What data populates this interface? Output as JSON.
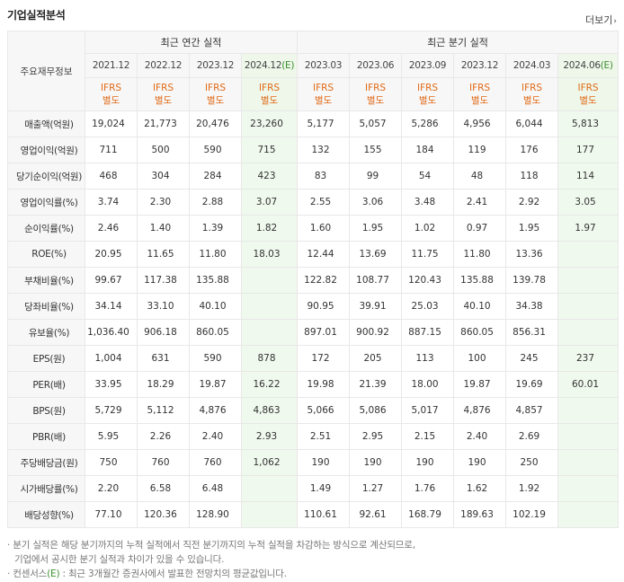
{
  "header": {
    "title": "기업실적분석",
    "more_label": "더보기"
  },
  "table": {
    "corner_label": "주요재무정보",
    "group_annual": "최근 연간 실적",
    "group_quarter": "최근 분기 실적",
    "periods": [
      "2021.12",
      "2022.12",
      "2023.12",
      "2024.12",
      "2023.03",
      "2023.06",
      "2023.09",
      "2023.12",
      "2024.03",
      "2024.06"
    ],
    "estimate_suffix": "(E)",
    "ifrs_line1": "IFRS",
    "ifrs_line2": "별도",
    "rows": [
      {
        "label": "매출액(억원)",
        "values": [
          "19,024",
          "21,773",
          "20,476",
          "23,260",
          "5,177",
          "5,057",
          "5,286",
          "4,956",
          "6,044",
          "5,813"
        ]
      },
      {
        "label": "영업이익(억원)",
        "values": [
          "711",
          "500",
          "590",
          "715",
          "132",
          "155",
          "184",
          "119",
          "176",
          "177"
        ]
      },
      {
        "label": "당기순이익(억원)",
        "values": [
          "468",
          "304",
          "284",
          "423",
          "83",
          "99",
          "54",
          "48",
          "118",
          "114"
        ]
      },
      {
        "label": "영업이익률(%)",
        "values": [
          "3.74",
          "2.30",
          "2.88",
          "3.07",
          "2.55",
          "3.06",
          "3.48",
          "2.41",
          "2.92",
          "3.05"
        ]
      },
      {
        "label": "순이익률(%)",
        "values": [
          "2.46",
          "1.40",
          "1.39",
          "1.82",
          "1.60",
          "1.95",
          "1.02",
          "0.97",
          "1.95",
          "1.97"
        ]
      },
      {
        "label": "ROE(%)",
        "values": [
          "20.95",
          "11.65",
          "11.80",
          "18.03",
          "12.44",
          "13.69",
          "11.75",
          "11.80",
          "13.36",
          ""
        ]
      },
      {
        "label": "부채비율(%)",
        "values": [
          "99.67",
          "117.38",
          "135.88",
          "",
          "122.82",
          "108.77",
          "120.43",
          "135.88",
          "139.78",
          ""
        ]
      },
      {
        "label": "당좌비율(%)",
        "values": [
          "34.14",
          "33.10",
          "40.10",
          "",
          "90.95",
          "39.91",
          "25.03",
          "40.10",
          "34.38",
          ""
        ]
      },
      {
        "label": "유보율(%)",
        "values": [
          "1,036.40",
          "906.18",
          "860.05",
          "",
          "897.01",
          "900.92",
          "887.15",
          "860.05",
          "856.31",
          ""
        ]
      },
      {
        "label": "EPS(원)",
        "values": [
          "1,004",
          "631",
          "590",
          "878",
          "172",
          "205",
          "113",
          "100",
          "245",
          "237"
        ]
      },
      {
        "label": "PER(배)",
        "values": [
          "33.95",
          "18.29",
          "19.87",
          "16.22",
          "19.98",
          "21.39",
          "18.00",
          "19.87",
          "19.69",
          "60.01"
        ]
      },
      {
        "label": "BPS(원)",
        "values": [
          "5,729",
          "5,112",
          "4,876",
          "4,863",
          "5,066",
          "5,086",
          "5,017",
          "4,876",
          "4,857",
          ""
        ]
      },
      {
        "label": "PBR(배)",
        "values": [
          "5.95",
          "2.26",
          "2.40",
          "2.93",
          "2.51",
          "2.95",
          "2.15",
          "2.40",
          "2.69",
          ""
        ]
      },
      {
        "label": "주당배당금(원)",
        "values": [
          "750",
          "760",
          "760",
          "1,062",
          "190",
          "190",
          "190",
          "190",
          "250",
          ""
        ]
      },
      {
        "label": "시가배당률(%)",
        "values": [
          "2.20",
          "6.58",
          "6.48",
          "",
          "1.49",
          "1.27",
          "1.76",
          "1.62",
          "1.92",
          ""
        ]
      },
      {
        "label": "배당성향(%)",
        "values": [
          "77.10",
          "120.36",
          "128.90",
          "",
          "110.61",
          "92.61",
          "168.79",
          "189.63",
          "102.19",
          ""
        ]
      }
    ]
  },
  "notes": {
    "line1": "분기 실적은 해당 분기까지의 누적 실적에서 직전 분기까지의 누적 실적을 차감하는 방식으로 계산되므로,",
    "line2": "기업에서 공시한 분기 실적과 차이가 있을 수 있습니다.",
    "line3_pre": "컨센서스",
    "line3_e": "(E)",
    "line3_post": ": 최근 3개월간 증권사에서 발표한 전망치의 평균값입니다."
  },
  "colors": {
    "ifrs_orange": "#e06a17",
    "estimate_green": "#3a8f2e",
    "estimate_bg": "#f0f9ee"
  }
}
